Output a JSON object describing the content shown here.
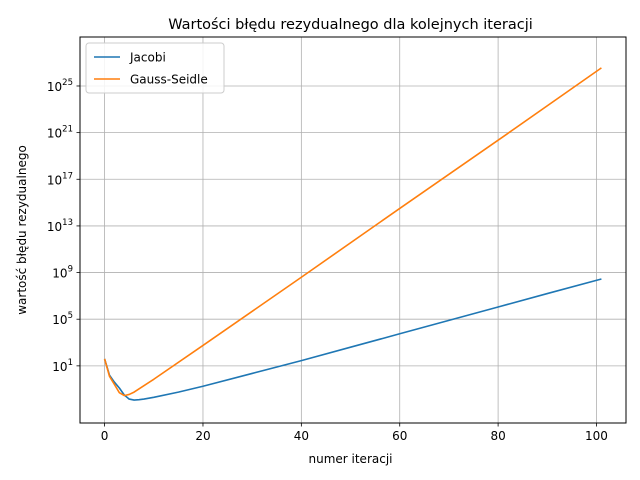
{
  "chart_data": {
    "type": "line",
    "title": "Wartości błędu rezydualnego dla kolejnych iteracji",
    "xlabel": "numer iteracji",
    "ylabel": "wartość błędu rezydualnego",
    "yscale": "log",
    "grid": true,
    "legend_position": "top-left",
    "xlim": [
      -5,
      106
    ],
    "ylim_log10": [
      -3.9,
      29.2
    ],
    "x_ticks": [
      0,
      20,
      40,
      60,
      80,
      100
    ],
    "y_ticks_exponent": [
      1,
      5,
      9,
      13,
      17,
      21,
      25
    ],
    "y_tick_base": "10",
    "series": [
      {
        "name": "Jacobi",
        "color": "#1f77b4",
        "x": [
          0,
          1,
          2,
          3,
          4,
          5,
          6,
          7,
          8,
          10,
          15,
          20,
          30,
          40,
          50,
          60,
          70,
          80,
          90,
          101
        ],
        "log10_y": [
          1.6,
          0.2,
          -0.4,
          -0.9,
          -1.5,
          -1.85,
          -1.93,
          -1.9,
          -1.85,
          -1.7,
          -1.25,
          -0.75,
          0.35,
          1.45,
          2.6,
          3.75,
          4.9,
          6.05,
          7.2,
          8.45
        ]
      },
      {
        "name": "Gauss-Seidle",
        "color": "#ff7f0e",
        "x": [
          0,
          1,
          2,
          3,
          4,
          5,
          6,
          10,
          20,
          40,
          60,
          80,
          101
        ],
        "log10_y": [
          1.6,
          0.1,
          -0.6,
          -1.3,
          -1.55,
          -1.45,
          -1.25,
          -0.15,
          2.75,
          8.6,
          14.5,
          20.35,
          26.55
        ]
      }
    ]
  },
  "axis_text": {
    "title": "Wartości błędu rezydualnego dla kolejnych iteracji",
    "xlabel": "numer iteracji",
    "ylabel": "wartość błędu rezydualnego"
  }
}
